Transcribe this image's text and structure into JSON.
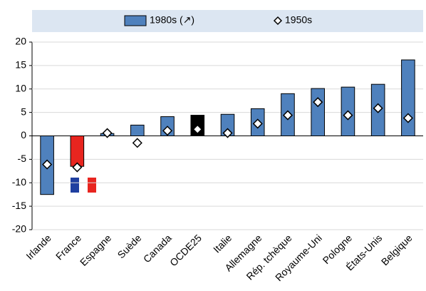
{
  "chart_data": {
    "type": "bar",
    "categories": [
      "Irlande",
      "France",
      "Espagne",
      "Suède",
      "Canada",
      "OCDE25",
      "Italie",
      "Allemagne",
      "Rép. tchèque",
      "Royaume-Uni",
      "Pologne",
      "États-Unis",
      "Belgique"
    ],
    "series": [
      {
        "name": "1980s (↗)",
        "type": "bar",
        "color": "#4f81bd",
        "colors": [
          "#4f81bd",
          "#e8251f",
          "#4f81bd",
          "#4f81bd",
          "#4f81bd",
          "#000000",
          "#4f81bd",
          "#4f81bd",
          "#4f81bd",
          "#4f81bd",
          "#4f81bd",
          "#4f81bd",
          "#4f81bd"
        ],
        "values": [
          -12.5,
          -6.5,
          0.5,
          2.3,
          4.1,
          4.4,
          4.6,
          5.8,
          9.0,
          10.1,
          10.4,
          11.0,
          16.2
        ]
      },
      {
        "name": "1950s",
        "type": "marker",
        "color": "#ffffff",
        "values": [
          -6.1,
          -6.7,
          0.6,
          -1.5,
          1.1,
          1.4,
          0.6,
          2.6,
          4.4,
          7.2,
          4.4,
          5.9,
          3.8
        ]
      }
    ],
    "ylim": [
      -20,
      20
    ],
    "yticks": [
      -20,
      -15,
      -10,
      -5,
      0,
      5,
      10,
      15,
      20
    ],
    "grid": true
  }
}
